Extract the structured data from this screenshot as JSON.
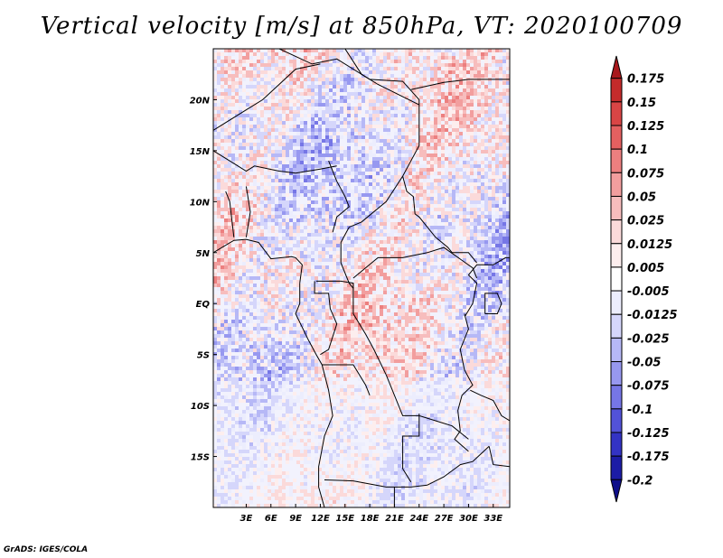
{
  "chart_data": {
    "type": "heatmap",
    "title": "Vertical velocity [m/s] at 850hPa, VT: 2020100709",
    "xlabel": "",
    "ylabel": "",
    "xlim": [
      -1,
      35
    ],
    "ylim": [
      -20,
      25
    ],
    "x_ticks": [
      {
        "value": 3,
        "label": "3E"
      },
      {
        "value": 6,
        "label": "6E"
      },
      {
        "value": 9,
        "label": "9E"
      },
      {
        "value": 12,
        "label": "12E"
      },
      {
        "value": 15,
        "label": "15E"
      },
      {
        "value": 18,
        "label": "18E"
      },
      {
        "value": 21,
        "label": "21E"
      },
      {
        "value": 24,
        "label": "24E"
      },
      {
        "value": 27,
        "label": "27E"
      },
      {
        "value": 30,
        "label": "30E"
      },
      {
        "value": 33,
        "label": "33E"
      }
    ],
    "y_ticks": [
      {
        "value": 20,
        "label": "20N"
      },
      {
        "value": 15,
        "label": "15N"
      },
      {
        "value": 10,
        "label": "10N"
      },
      {
        "value": 5,
        "label": "5N"
      },
      {
        "value": 0,
        "label": "EQ"
      },
      {
        "value": -5,
        "label": "5S"
      },
      {
        "value": -10,
        "label": "10S"
      },
      {
        "value": -15,
        "label": "15S"
      }
    ],
    "colorbar": {
      "levels": [
        "0.175",
        "0.15",
        "0.125",
        "0.1",
        "0.075",
        "0.05",
        "0.025",
        "0.0125",
        "0.005",
        "-0.005",
        "-0.0125",
        "-0.025",
        "-0.05",
        "-0.075",
        "-0.1",
        "-0.125",
        "-0.175",
        "-0.2"
      ],
      "colors": [
        "#a8181c",
        "#c42b2b",
        "#d94545",
        "#e46060",
        "#ec7f7f",
        "#f29e9e",
        "#f7bdbd",
        "#fbdada",
        "#fdeeee",
        "#ffffff",
        "#ecedfd",
        "#d5d6fb",
        "#b6b8f6",
        "#9798f0",
        "#7676e6",
        "#5252d8",
        "#3333c4",
        "#1c1ca6",
        "#0e0e8a"
      ]
    }
  },
  "credit": "GrADS: IGES/COLA"
}
